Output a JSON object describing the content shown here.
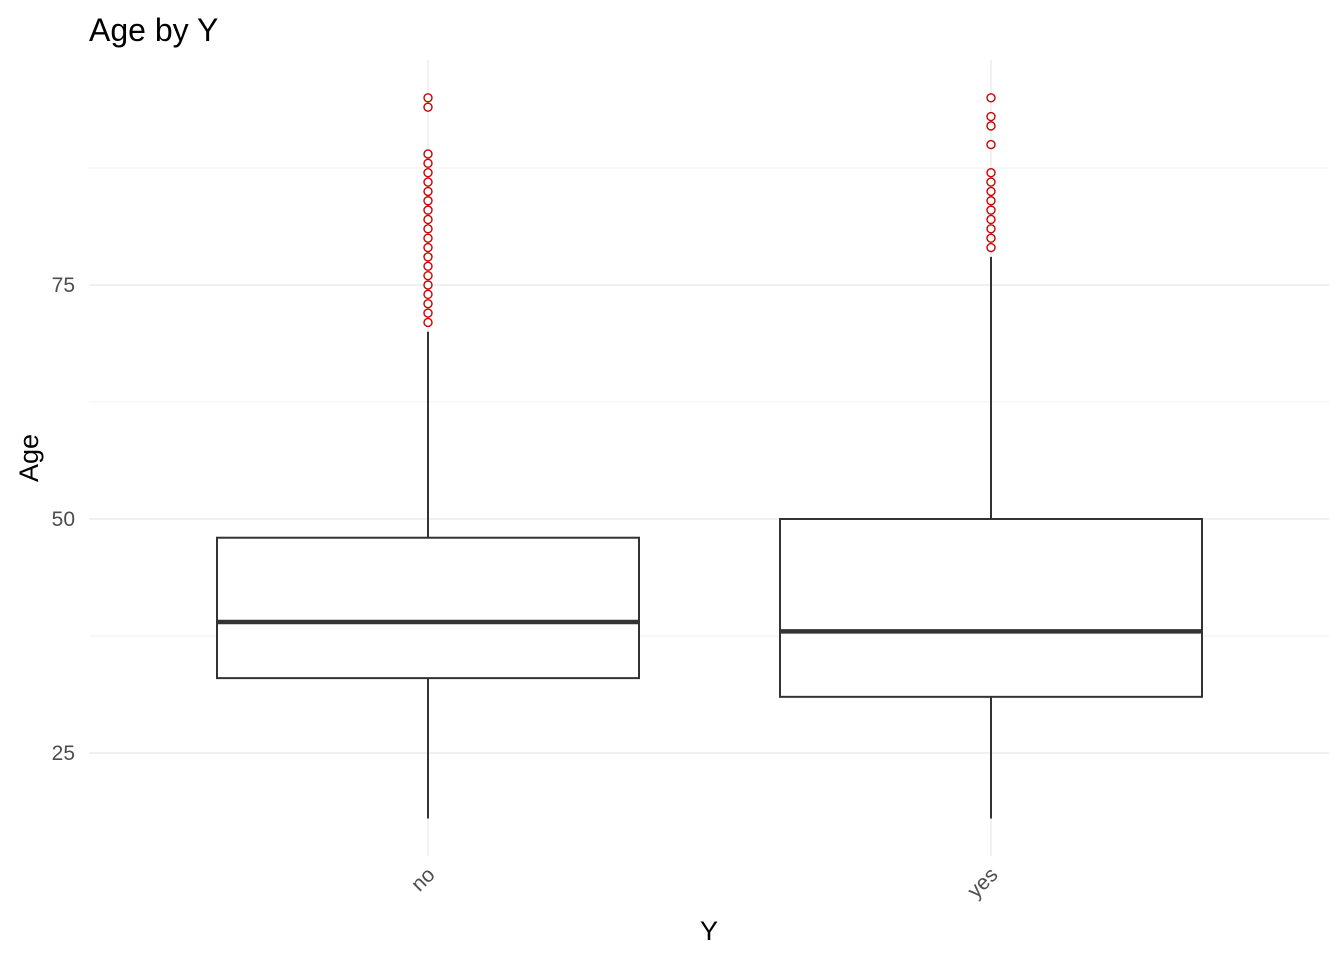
{
  "chart_data": {
    "type": "boxplot",
    "title": "Age by Y",
    "xlabel": "Y",
    "ylabel": "Age",
    "categories": [
      "no",
      "yes"
    ],
    "ylim": [
      11,
      97
    ],
    "yticks": [
      25,
      50,
      75
    ],
    "grid": true,
    "outlier_color": "#cc0000",
    "box_color": "#333333",
    "boxes": [
      {
        "category": "no",
        "whisker_low": 18,
        "q1": 33,
        "median": 39,
        "q3": 48,
        "whisker_high": 70,
        "outliers": [
          71,
          72,
          73,
          74,
          75,
          76,
          77,
          78,
          79,
          80,
          81,
          82,
          83,
          84,
          85,
          86,
          87,
          88,
          89,
          94,
          95
        ]
      },
      {
        "category": "yes",
        "whisker_low": 18,
        "q1": 31,
        "median": 38,
        "q3": 50,
        "whisker_high": 78,
        "outliers": [
          79,
          80,
          81,
          82,
          83,
          84,
          85,
          86,
          87,
          90,
          92,
          93,
          95
        ]
      }
    ]
  }
}
